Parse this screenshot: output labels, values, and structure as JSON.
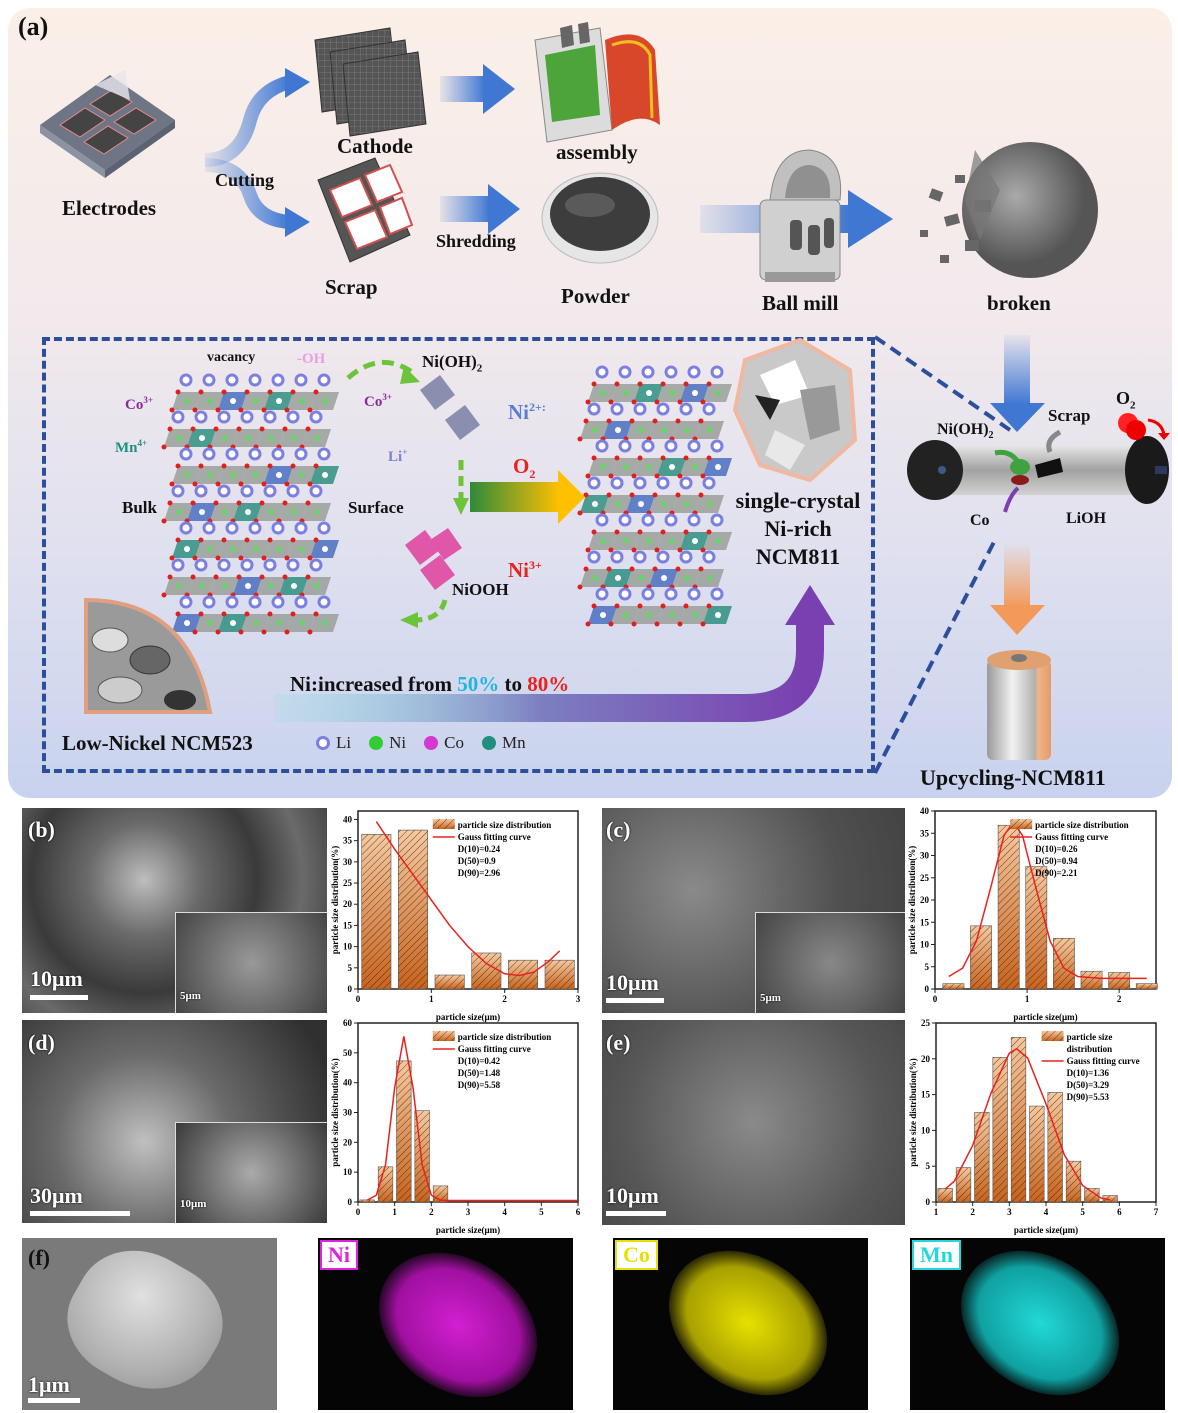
{
  "panel_a": {
    "label": "(a)",
    "top_row": {
      "electrodes": "Electrodes",
      "cutting": "Cutting",
      "cathode": "Cathode",
      "scrap": "Scrap",
      "assembly": "assembly",
      "shredding": "Shredding",
      "powder": "Powder",
      "ball_mill": "Ball mill",
      "broken": "broken"
    },
    "mechanism": {
      "vacancy": "vacancy",
      "oh": "-OH",
      "ni_oh2": "Ni(OH)",
      "ni_oh2_sub": "2",
      "co3_left": "Co",
      "co3_right": "Co",
      "co_sup": "3+",
      "mn4": "Mn",
      "mn_sup": "4+",
      "li": "Li",
      "li_sup": "+",
      "ni2": "Ni",
      "ni2_sup": "2+:",
      "o2": "O",
      "o2_sub": "2",
      "bulk": "Bulk",
      "surface": "Surface",
      "ni3": "Ni",
      "ni3_sup": "3+",
      "niooh": "NiOOH",
      "product_line1": "single-crystal",
      "product_line2": "Ni-rich",
      "product_line3": "NCM811",
      "increase_prefix": "Ni:increased from ",
      "increase_from": "50%",
      "increase_mid": " to ",
      "increase_to": "80%",
      "low_nickel": "Low-Nickel NCM523",
      "legend": [
        {
          "label": "Li",
          "color": "#7b7fe0"
        },
        {
          "label": "Ni",
          "color": "#33cc33"
        },
        {
          "label": "Co",
          "color": "#d23ad2"
        },
        {
          "label": "Mn",
          "color": "#1f8f80"
        }
      ]
    },
    "reactor": {
      "ni_oh2": "Ni(OH)",
      "ni_oh2_sub": "2",
      "scrap": "Scrap",
      "o2": "O",
      "o2_sub": "2",
      "co": "Co",
      "lioh": "LiOH",
      "product": "Upcycling-NCM811"
    },
    "colors": {
      "dash": "#2d4f9b",
      "increase_from": "#22b5e0",
      "increase_to": "#e8221c",
      "ni2": "#5b7fcf",
      "red": "#e8221c"
    }
  },
  "sem": {
    "b": {
      "label": "(b)",
      "scale": "10μm",
      "inset_scale": "5μm"
    },
    "c": {
      "label": "(c)",
      "scale": "10μm",
      "inset_scale": "5μm"
    },
    "d": {
      "label": "(d)",
      "scale": "30μm",
      "inset_scale": "10μm"
    },
    "e": {
      "label": "(e)",
      "scale": "10μm"
    },
    "f": {
      "label": "(f)",
      "scale": "1μm"
    }
  },
  "eds": [
    {
      "label": "Ni",
      "color": "#e021e0"
    },
    {
      "label": "Co",
      "color": "#e8e000"
    },
    {
      "label": "Mn",
      "color": "#22d8d8"
    }
  ],
  "chart_data": [
    {
      "id": "b",
      "type": "bar",
      "xlabel": "particle size(μm)",
      "ylabel": "particle size distribution(%)",
      "xlim": [
        0,
        3
      ],
      "ylim": [
        0,
        42
      ],
      "xticks": [
        0,
        1,
        2,
        3
      ],
      "yticks": [
        0,
        5,
        10,
        15,
        20,
        25,
        30,
        35,
        40
      ],
      "bar_width": 0.4,
      "bars": {
        "x": [
          0.25,
          0.75,
          1.25,
          1.75,
          2.25,
          2.75
        ],
        "values": [
          36.5,
          37.5,
          3.3,
          8.5,
          6.8,
          6.8
        ]
      },
      "curve": [
        [
          0.25,
          39.5
        ],
        [
          0.5,
          33
        ],
        [
          0.75,
          27
        ],
        [
          1.0,
          21
        ],
        [
          1.25,
          15
        ],
        [
          1.5,
          10
        ],
        [
          1.75,
          6
        ],
        [
          2.0,
          3.6
        ],
        [
          2.2,
          3.2
        ],
        [
          2.4,
          4
        ],
        [
          2.6,
          6.5
        ],
        [
          2.75,
          9
        ]
      ],
      "legend": [
        "particle size distribution",
        "Gauss fitting curve"
      ],
      "stats": [
        "D(10)=0.24",
        "D(50)=0.9",
        "D(90)=2.96"
      ]
    },
    {
      "id": "c",
      "type": "bar",
      "xlabel": "particle size(μm)",
      "ylabel": "particle size distribution(%)",
      "xlim": [
        0,
        2.4
      ],
      "ylim": [
        0,
        40
      ],
      "xticks": [
        0,
        1,
        2
      ],
      "yticks": [
        0,
        5,
        10,
        15,
        20,
        25,
        30,
        35,
        40
      ],
      "bar_width": 0.23,
      "bars": {
        "x": [
          0.2,
          0.5,
          0.8,
          1.1,
          1.4,
          1.7,
          2.0,
          2.3
        ],
        "values": [
          1.2,
          14.2,
          36.8,
          27.5,
          11.4,
          4.0,
          3.7,
          1.2
        ]
      },
      "curve": [
        [
          0.15,
          2.8
        ],
        [
          0.3,
          4.7
        ],
        [
          0.45,
          10.8
        ],
        [
          0.6,
          22.4
        ],
        [
          0.75,
          34.5
        ],
        [
          0.85,
          37.5
        ],
        [
          0.95,
          34.5
        ],
        [
          1.1,
          22.4
        ],
        [
          1.25,
          10.8
        ],
        [
          1.4,
          4.7
        ],
        [
          1.55,
          2.8
        ],
        [
          1.8,
          2.4
        ],
        [
          2.3,
          2.4
        ]
      ],
      "legend": [
        "particle size distribution",
        "Gauss fitting curve"
      ],
      "stats": [
        "D(10)=0.26",
        "D(50)=0.94",
        "D(90)=2.21"
      ]
    },
    {
      "id": "d",
      "type": "bar",
      "xlabel": "particle size(μm)",
      "ylabel": "particle size distribution(%)",
      "xlim": [
        0,
        6
      ],
      "ylim": [
        0,
        60
      ],
      "xticks": [
        0,
        1,
        2,
        3,
        4,
        5,
        6
      ],
      "yticks": [
        0,
        10,
        20,
        30,
        40,
        50,
        60
      ],
      "bar_width": 0.4,
      "bars": {
        "x": [
          0.25,
          0.75,
          1.25,
          1.75,
          2.25
        ],
        "values": [
          0.7,
          11.8,
          47.3,
          30.6,
          5.4
        ]
      },
      "curve": [
        [
          0.25,
          0.6
        ],
        [
          0.5,
          2.3
        ],
        [
          0.75,
          12.4
        ],
        [
          1.0,
          38.4
        ],
        [
          1.25,
          55.5
        ],
        [
          1.5,
          38.4
        ],
        [
          1.75,
          12.4
        ],
        [
          2.0,
          2.3
        ],
        [
          2.25,
          0.6
        ],
        [
          2.5,
          0.5
        ],
        [
          6.0,
          0.5
        ]
      ],
      "legend": [
        "particle size distribution",
        "Gauss fitting curve"
      ],
      "stats": [
        "D(10)=0.42",
        "D(50)=1.48",
        "D(90)=5.58"
      ]
    },
    {
      "id": "e",
      "type": "bar",
      "xlabel": "particle size(μm)",
      "ylabel": "particle size distribution(%)",
      "xlim": [
        1,
        7
      ],
      "ylim": [
        0,
        25
      ],
      "xticks": [
        1,
        2,
        3,
        4,
        5,
        6,
        7
      ],
      "yticks": [
        0,
        5,
        10,
        15,
        20,
        25
      ],
      "bar_width": 0.4,
      "bars": {
        "x": [
          1.25,
          1.75,
          2.25,
          2.75,
          3.25,
          3.75,
          4.25,
          4.75,
          5.25,
          5.75
        ],
        "values": [
          1.9,
          4.8,
          12.5,
          20.2,
          23.0,
          13.4,
          15.3,
          5.7,
          1.9,
          0.9
        ]
      },
      "curve": [
        [
          1.25,
          1.8
        ],
        [
          1.5,
          2.9
        ],
        [
          2.0,
          7.9
        ],
        [
          2.5,
          15.2
        ],
        [
          3.0,
          20.8
        ],
        [
          3.2,
          21.4
        ],
        [
          3.5,
          20.1
        ],
        [
          4.0,
          13.7
        ],
        [
          4.5,
          6.6
        ],
        [
          5.0,
          2.3
        ],
        [
          5.5,
          0.55
        ],
        [
          5.75,
          0.3
        ]
      ],
      "legend": [
        "particle size distribution",
        "Gauss fitting curve"
      ],
      "stats": [
        "D(10)=1.36",
        "D(50)=3.29",
        "D(90)=5.53"
      ]
    }
  ]
}
